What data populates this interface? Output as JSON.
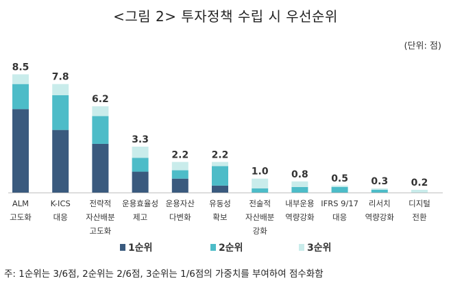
{
  "chart_data": {
    "type": "bar",
    "stacked": true,
    "title": "<그림 2> 투자정책 수립 시 우선순위",
    "unit_note": "(단위: 점)",
    "footnote": "주: 1순위는 3/6점, 2순위는 2/6점, 3순위는 1/6점의 가중치를 부여하여 점수화함",
    "categories": [
      [
        "ALM",
        "고도화"
      ],
      [
        "K-ICS",
        "대응"
      ],
      [
        "전략적",
        "자산배분",
        "고도화"
      ],
      [
        "운용효율성",
        "제고"
      ],
      [
        "운용자산",
        "다변화"
      ],
      [
        "유동성",
        "확보"
      ],
      [
        "전술적",
        "자산배분",
        "강화"
      ],
      [
        "내부운용",
        "역량강화"
      ],
      [
        "IFRS 9/17",
        "대응"
      ],
      [
        "리서치",
        "역량강화"
      ],
      [
        "디지털",
        "전환"
      ]
    ],
    "totals": [
      "8.5",
      "7.8",
      "6.2",
      "3.3",
      "2.2",
      "2.2",
      "1.0",
      "0.8",
      "0.5",
      "0.3",
      "0.2"
    ],
    "series": [
      {
        "name": "1순위",
        "color": "#3a5a7e",
        "values": [
          6.0,
          4.5,
          3.5,
          1.5,
          1.0,
          0.5,
          0.0,
          0.0,
          0.0,
          0.0,
          0.0
        ]
      },
      {
        "name": "2순위",
        "color": "#4dbcc8",
        "values": [
          1.8,
          2.5,
          2.0,
          1.0,
          0.6,
          1.4,
          0.3,
          0.4,
          0.4,
          0.2,
          0.0
        ]
      },
      {
        "name": "3순위",
        "color": "#c9eceb",
        "values": [
          0.7,
          0.8,
          0.7,
          0.8,
          0.6,
          0.3,
          0.7,
          0.4,
          0.1,
          0.1,
          0.2
        ]
      }
    ],
    "legend_position": "bottom",
    "grid": false
  }
}
